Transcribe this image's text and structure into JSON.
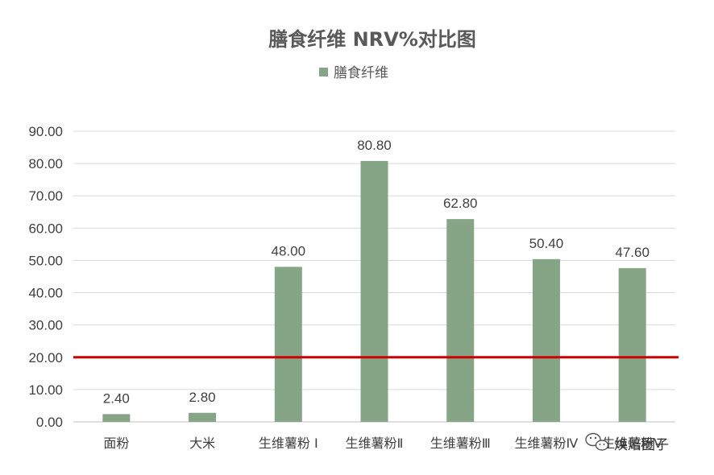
{
  "chart_data": {
    "type": "bar",
    "title": "膳食纤维 NRV%对比图",
    "categories": [
      "面粉",
      "大米",
      "生维薯粉 Ⅰ",
      "生维薯粉Ⅱ",
      "生维薯粉Ⅲ",
      "生维薯粉Ⅳ",
      "生维薯粉Ⅴ"
    ],
    "series": [
      {
        "name": "膳食纤维",
        "values": [
          2.4,
          2.8,
          48.0,
          80.8,
          62.8,
          50.4,
          47.6
        ],
        "color": "#86a586"
      }
    ],
    "data_labels": [
      "2.40",
      "2.80",
      "48.00",
      "80.80",
      "62.80",
      "50.40",
      "47.60"
    ],
    "ylim": [
      0,
      90
    ],
    "yticks": [
      "0.00",
      "10.00",
      "20.00",
      "30.00",
      "40.00",
      "50.00",
      "60.00",
      "70.00",
      "80.00",
      "90.00"
    ],
    "reference_line": {
      "value": 20,
      "color": "#cc0000"
    },
    "grid": true,
    "legend_position": "top-center",
    "xlabel": "",
    "ylabel": ""
  },
  "watermark": {
    "text": "焕焙圈子",
    "icon": "wechat-icon"
  }
}
